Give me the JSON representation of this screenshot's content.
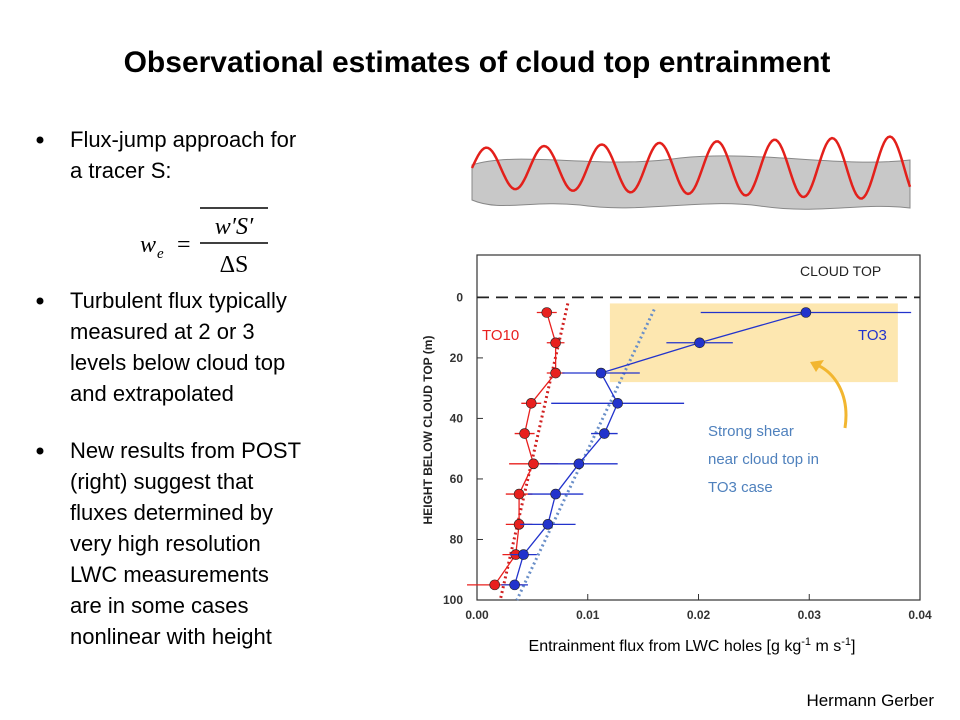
{
  "title": "Observational estimates of cloud top entrainment",
  "bullets": [
    {
      "lines": [
        "Flux-jump approach for",
        "a tracer S:"
      ]
    },
    {
      "lines": [
        "Turbulent flux typically",
        "measured at 2 or 3",
        "levels below cloud top",
        "and extrapolated"
      ]
    },
    {
      "lines": [
        "New results from POST",
        "(right) suggest that",
        "fluxes determined by",
        "very high resolution",
        "LWC measurements",
        "are in some cases",
        "nonlinear with height"
      ]
    }
  ],
  "formula": {
    "lhs": "w",
    "lhs_sub": "e",
    "numerator": "w′S′",
    "denominator": "ΔS"
  },
  "author": "Hermann Gerber",
  "chart_data": {
    "type": "profile",
    "ylabel": "HEIGHT BELOW CLOUD TOP (m)",
    "xlabel_parts": [
      "Entrainment flux from LWC holes [g kg",
      "-1",
      " m s",
      "-1",
      "]"
    ],
    "reference_label": "CLOUD TOP",
    "reference_y": 0,
    "annotation": [
      "Strong shear",
      "near cloud top in",
      "TO3 case"
    ],
    "xlim": [
      0,
      0.04
    ],
    "xticks": [
      {
        "value": 0,
        "label": "0.00"
      },
      {
        "value": 0.01,
        "label": "0.01"
      },
      {
        "value": 0.02,
        "label": "0.02"
      },
      {
        "value": 0.03,
        "label": "0.03"
      },
      {
        "value": 0.04,
        "label": "0.04"
      }
    ],
    "ylim": [
      -14,
      100
    ],
    "yticks": [
      0,
      20,
      40,
      60,
      80,
      100
    ],
    "y_inverted": true,
    "highlight": {
      "x": [
        0.012,
        0.038
      ],
      "y": [
        2,
        28
      ],
      "color": "#fde7b0"
    },
    "y": [
      5,
      15,
      25,
      35,
      45,
      55,
      65,
      75,
      85,
      95
    ],
    "series": [
      {
        "name": "TO10",
        "color": "#e8201e",
        "values": [
          0.0063,
          0.0071,
          0.0071,
          0.0049,
          0.0043,
          0.0051,
          0.0038,
          0.0038,
          0.0035,
          0.0016
        ],
        "errors": [
          0.0009,
          0.0008,
          0.0008,
          0.0009,
          0.0009,
          0.0022,
          0.0012,
          0.0012,
          0.0012,
          0.0025
        ],
        "fit": {
          "x": [
            0.0082,
            0.0021
          ],
          "y": [
            2,
            100
          ],
          "color": "#d02020"
        }
      },
      {
        "name": "TO3",
        "color": "#2233cc",
        "values": [
          0.0297,
          0.0201,
          0.0112,
          0.0127,
          0.0115,
          0.0092,
          0.0071,
          0.0064,
          0.0042,
          0.0034
        ],
        "errors": [
          0.0095,
          0.003,
          0.0035,
          0.006,
          0.0012,
          0.0035,
          0.0025,
          0.0025,
          0.0012,
          0.0012
        ],
        "fit": {
          "x": [
            0.016,
            0.0036
          ],
          "y": [
            4,
            100
          ],
          "color": "#6a8fc8"
        }
      }
    ]
  }
}
